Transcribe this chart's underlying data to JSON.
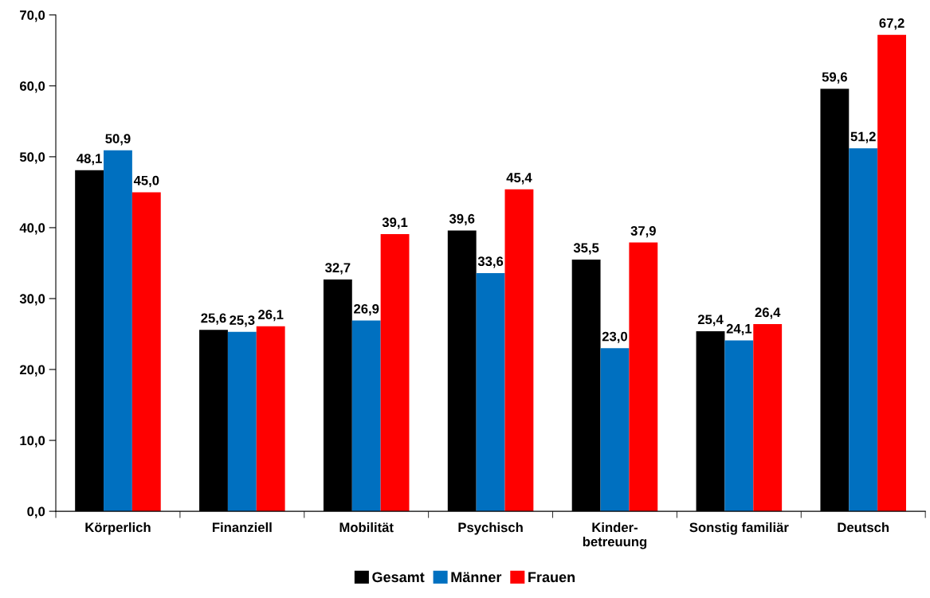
{
  "chart_data": {
    "type": "bar",
    "categories": [
      "Körperlich",
      "Finanziell",
      "Mobilität",
      "Psychisch",
      "Kinder-\nbetreuung",
      "Sonstig familiär",
      "Deutsch"
    ],
    "series": [
      {
        "name": "Gesamt",
        "color": "#000000",
        "values": [
          48.1,
          25.6,
          32.7,
          39.6,
          35.5,
          25.4,
          59.6
        ],
        "value_labels": [
          "48,1",
          "25,6",
          "32,7",
          "39,6",
          "35,5",
          "25,4",
          "59,6"
        ]
      },
      {
        "name": "Männer",
        "color": "#0070c0",
        "values": [
          50.9,
          25.3,
          26.9,
          33.6,
          23.0,
          24.1,
          51.2
        ],
        "value_labels": [
          "50,9",
          "25,3",
          "26,9",
          "33,6",
          "23,0",
          "24,1",
          "51,2"
        ]
      },
      {
        "name": "Frauen",
        "color": "#ff0000",
        "values": [
          45.0,
          26.1,
          39.1,
          45.4,
          37.9,
          26.4,
          67.2
        ],
        "value_labels": [
          "45,0",
          "26,1",
          "39,1",
          "45,4",
          "37,9",
          "26,4",
          "67,2"
        ]
      }
    ],
    "ylim": [
      0,
      70
    ],
    "yticks": [
      {
        "value": 0,
        "label": "0,0"
      },
      {
        "value": 10,
        "label": "10,0"
      },
      {
        "value": 20,
        "label": "20,0"
      },
      {
        "value": 30,
        "label": "30,0"
      },
      {
        "value": 40,
        "label": "40,0"
      },
      {
        "value": 50,
        "label": "50,0"
      },
      {
        "value": 60,
        "label": "60,0"
      },
      {
        "value": 70,
        "label": "70,0"
      }
    ],
    "grid": false,
    "legend": "bottom"
  }
}
